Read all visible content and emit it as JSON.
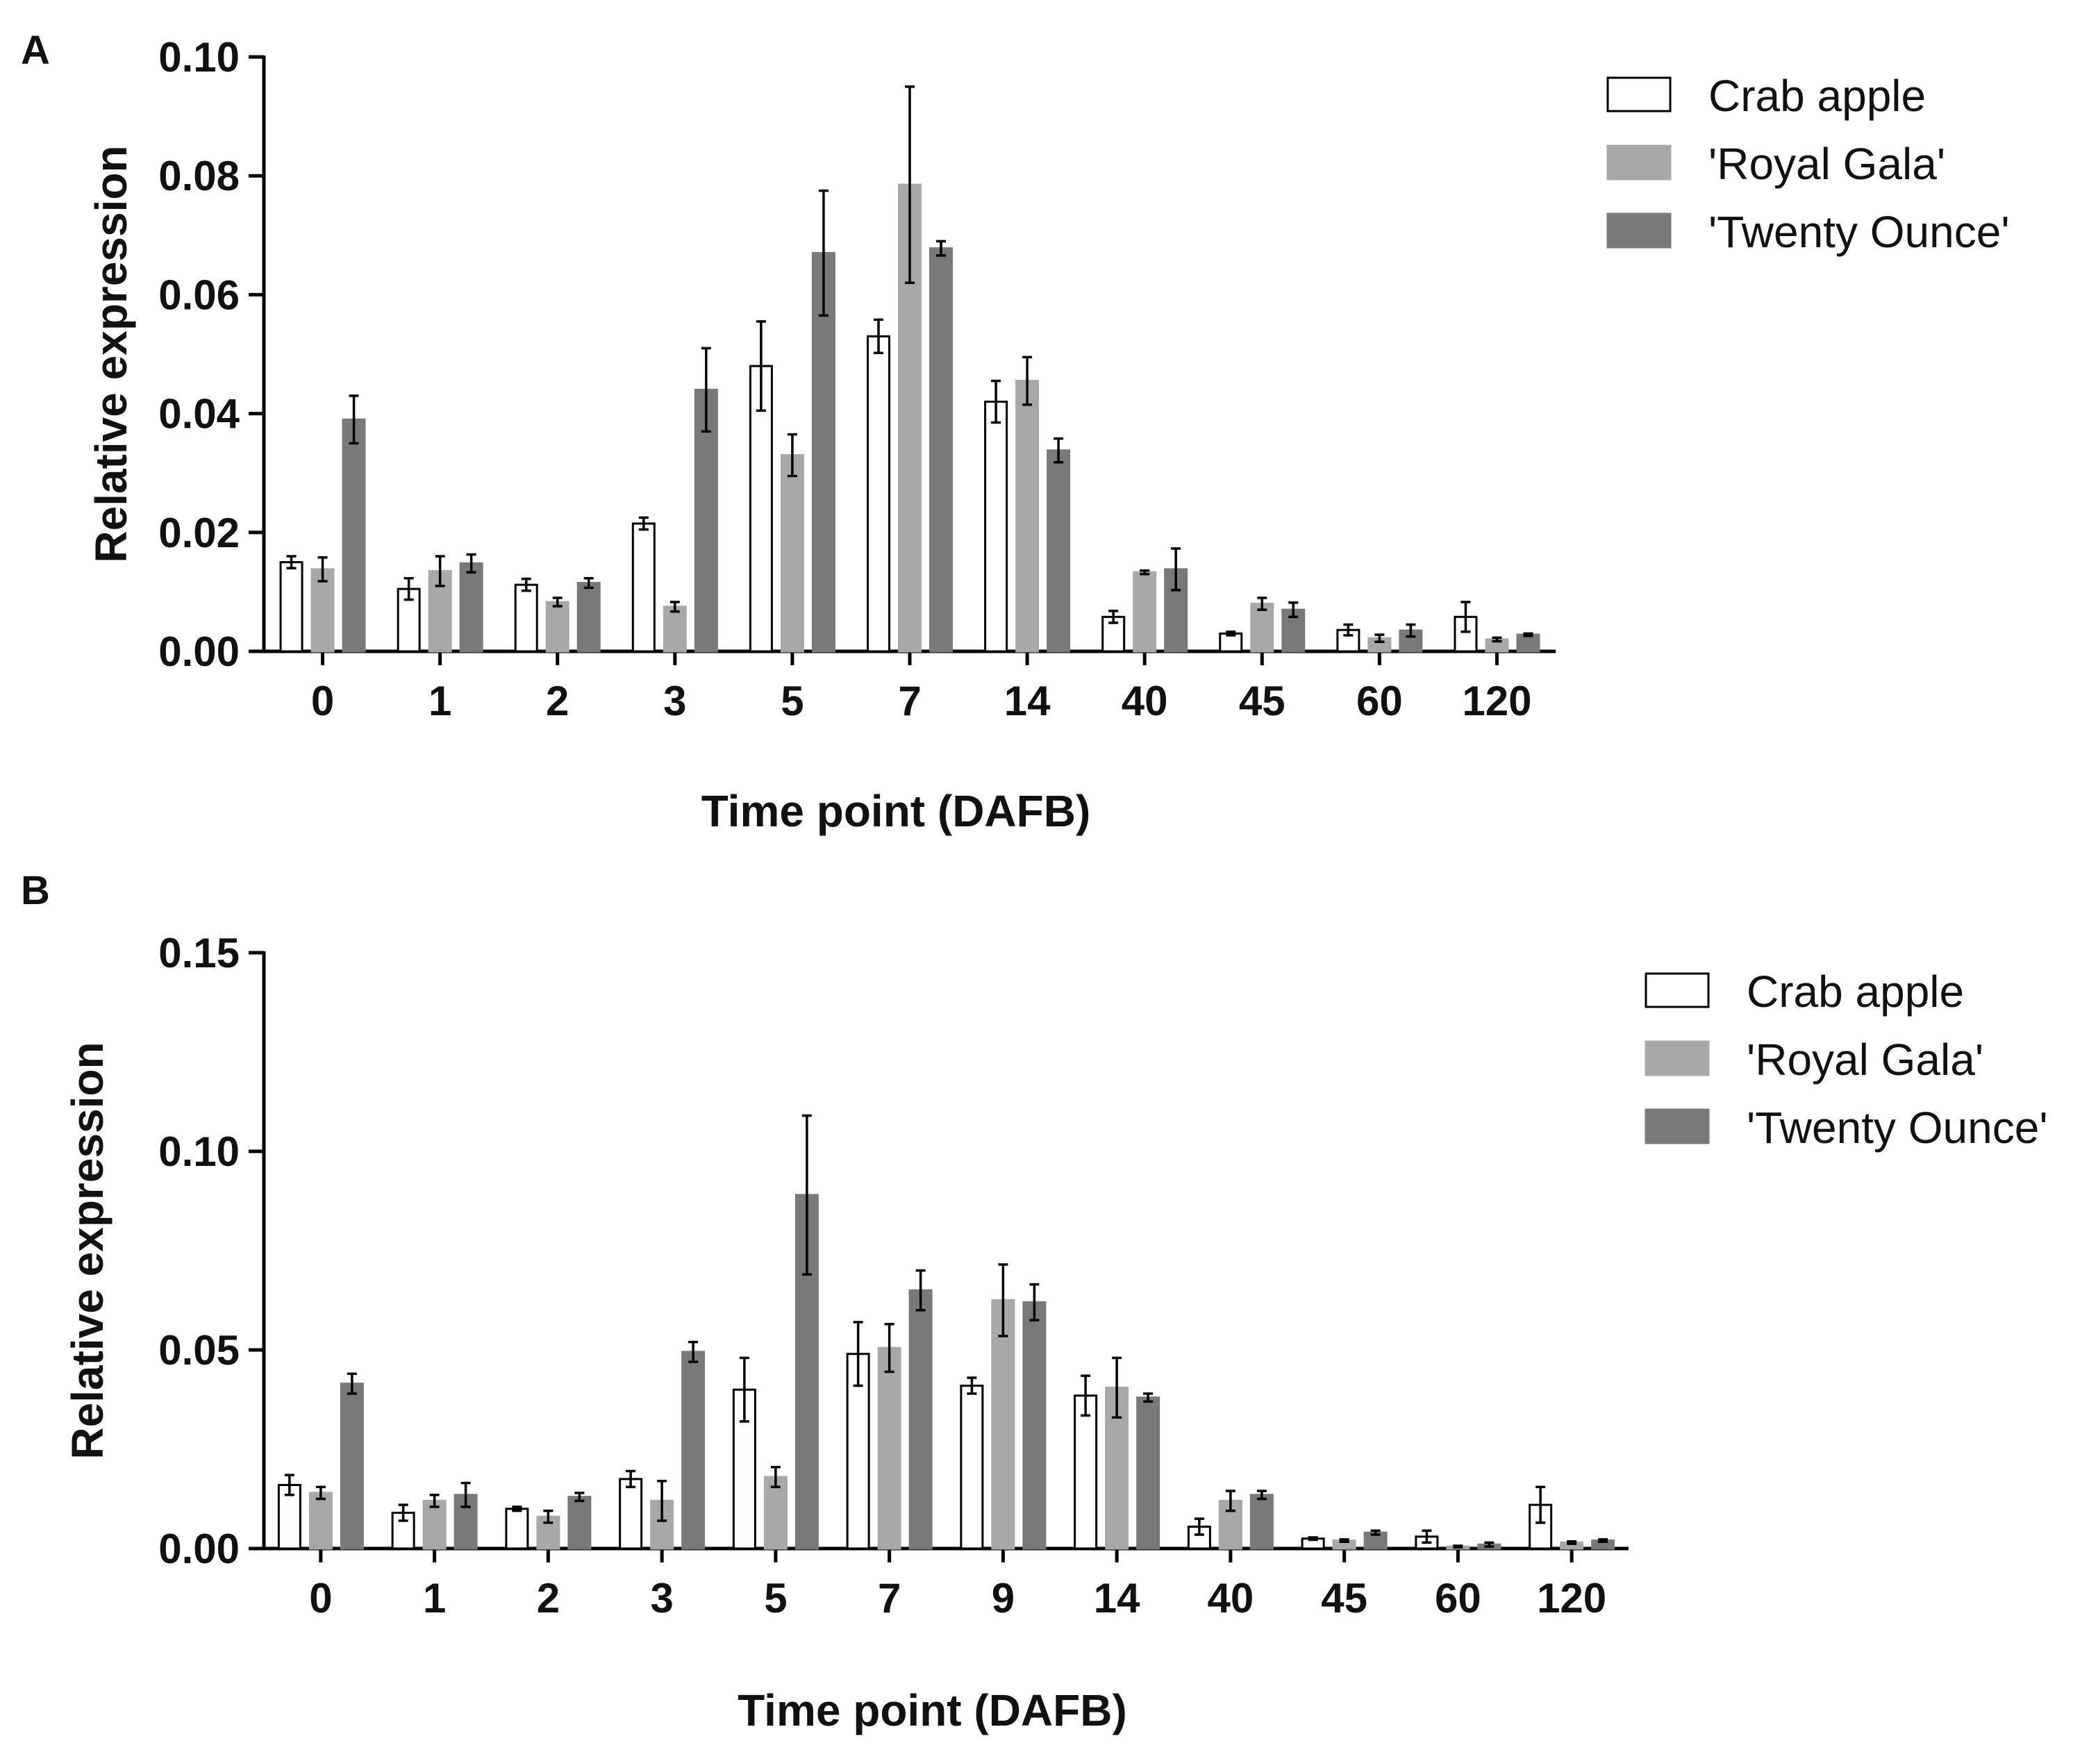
{
  "chart_data": [
    {
      "type": "bar",
      "panel": "A",
      "title": "",
      "xlabel": "Time point (DAFB)",
      "ylabel": "Relative expression",
      "ylim": [
        0,
        0.1
      ],
      "yticks": [
        "0.00",
        "0.02",
        "0.04",
        "0.06",
        "0.08",
        "0.10"
      ],
      "categories": [
        "0",
        "1",
        "2",
        "3",
        "5",
        "7",
        "14",
        "40",
        "45",
        "60",
        "120"
      ],
      "legend_position": "top-right",
      "series": [
        {
          "name": "Crab apple",
          "color": "#ffffff",
          "values": [
            0.015,
            0.0105,
            0.0112,
            0.0215,
            0.048,
            0.053,
            0.042,
            0.0058,
            0.003,
            0.0036,
            0.0058
          ],
          "errors": [
            0.001,
            0.0018,
            0.001,
            0.001,
            0.0075,
            0.0028,
            0.0035,
            0.001,
            0.0003,
            0.0009,
            0.0025
          ]
        },
        {
          "name": "'Royal Gala'",
          "color": "#a8a8a8",
          "values": [
            0.0138,
            0.0135,
            0.0083,
            0.0075,
            0.033,
            0.0785,
            0.0455,
            0.0133,
            0.008,
            0.0022,
            0.002
          ],
          "errors": [
            0.002,
            0.0025,
            0.0007,
            0.0008,
            0.0035,
            0.0165,
            0.004,
            0.0003,
            0.001,
            0.0006,
            0.0003
          ]
        },
        {
          "name": "'Twenty Ounce'",
          "color": "#797979",
          "values": [
            0.039,
            0.0148,
            0.0115,
            0.044,
            0.067,
            0.0678,
            0.0338,
            0.0138,
            0.007,
            0.0035,
            0.0028
          ],
          "errors": [
            0.004,
            0.0015,
            0.0008,
            0.007,
            0.0105,
            0.0012,
            0.002,
            0.0035,
            0.0012,
            0.001,
            0.0002
          ]
        }
      ]
    },
    {
      "type": "bar",
      "panel": "B",
      "title": "",
      "xlabel": "Time point (DAFB)",
      "ylabel": "Relative expression",
      "ylim": [
        0,
        0.15
      ],
      "yticks": [
        "0.00",
        "0.05",
        "0.10",
        "0.15"
      ],
      "categories": [
        "0",
        "1",
        "2",
        "3",
        "5",
        "7",
        "9",
        "14",
        "40",
        "45",
        "60",
        "120"
      ],
      "legend_position": "top-right",
      "series": [
        {
          "name": "Crab apple",
          "color": "#ffffff",
          "values": [
            0.016,
            0.009,
            0.01,
            0.0175,
            0.04,
            0.049,
            0.041,
            0.0385,
            0.0055,
            0.0025,
            0.003,
            0.011
          ],
          "errors": [
            0.0025,
            0.002,
            0.0005,
            0.002,
            0.008,
            0.008,
            0.002,
            0.005,
            0.002,
            0.0003,
            0.0015,
            0.0045
          ]
        },
        {
          "name": "'Royal Gala'",
          "color": "#a8a8a8",
          "values": [
            0.014,
            0.012,
            0.008,
            0.012,
            0.018,
            0.0505,
            0.0625,
            0.0405,
            0.012,
            0.002,
            0.0005,
            0.0015
          ],
          "errors": [
            0.0015,
            0.0015,
            0.0015,
            0.005,
            0.0025,
            0.006,
            0.009,
            0.0075,
            0.0025,
            0.0003,
            0.0002,
            0.0003
          ]
        },
        {
          "name": "'Twenty Ounce'",
          "color": "#797979",
          "values": [
            0.0415,
            0.0135,
            0.013,
            0.0495,
            0.089,
            0.065,
            0.062,
            0.038,
            0.0135,
            0.004,
            0.001,
            0.002
          ],
          "errors": [
            0.0025,
            0.003,
            0.001,
            0.0025,
            0.02,
            0.005,
            0.0045,
            0.001,
            0.001,
            0.0005,
            0.0005,
            0.0003
          ]
        }
      ]
    }
  ]
}
